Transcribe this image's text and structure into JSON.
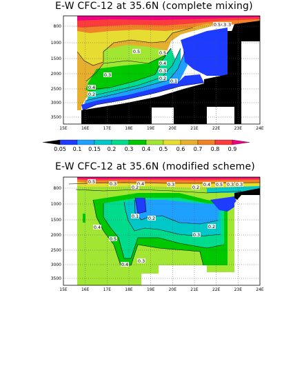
{
  "chart_data": [
    {
      "type": "heatmap",
      "title": "E-W CFC-12 at 35.6N (complete mixing)",
      "x_ticks": [
        "15E",
        "16E",
        "17E",
        "18E",
        "19E",
        "20E",
        "21E",
        "22E",
        "23E",
        "24E"
      ],
      "y_ticks": [
        "800",
        "1000",
        "1500",
        "2000",
        "2500",
        "3000",
        "3500"
      ],
      "xlim": [
        15,
        24
      ],
      "ylim": [
        3800,
        600
      ],
      "contour_labels": [
        "0.5",
        "0.5",
        "0.4",
        "0.3",
        "0.3",
        "0.2",
        "0.1",
        "0.3",
        "0.4",
        "0.2",
        "0.3",
        "0.5"
      ],
      "land_color": "#000000",
      "grid": "dotted"
    },
    {
      "type": "heatmap",
      "title": "E-W CFC-12 at 35.6N (modified scheme)",
      "x_ticks": [
        "15E",
        "16E",
        "17E",
        "18E",
        "19E",
        "20E",
        "21E",
        "22E",
        "23E",
        "24E"
      ],
      "y_ticks": [
        "800",
        "1000",
        "1500",
        "2000",
        "2500",
        "3000",
        "3500"
      ],
      "xlim": [
        15,
        24
      ],
      "ylim": [
        3800,
        600
      ],
      "contour_labels": [
        "0.5",
        "0.3",
        "0.4",
        "0.2",
        "0.3",
        "0.2",
        "0.4",
        "0.5",
        "0.3",
        "0.3",
        "0.1",
        "0.2",
        "0.4",
        "0.5",
        "0.2",
        "0.3",
        "0.4",
        "0.3"
      ],
      "land_color": "#000000",
      "grid": "dotted"
    }
  ],
  "colorbar": {
    "ticks": [
      "0.05",
      "0.1",
      "0.15",
      "0.2",
      "0.3",
      "0.4",
      "0.5",
      "0.6",
      "0.7",
      "0.8",
      "0.9"
    ],
    "colors": [
      "#000000",
      "#1e3cff",
      "#1ea0ff",
      "#00c8c8",
      "#00dc8c",
      "#00c800",
      "#a0e632",
      "#e6dc32",
      "#e6af2d",
      "#f08228",
      "#fa3c3c",
      "#f00082"
    ]
  }
}
